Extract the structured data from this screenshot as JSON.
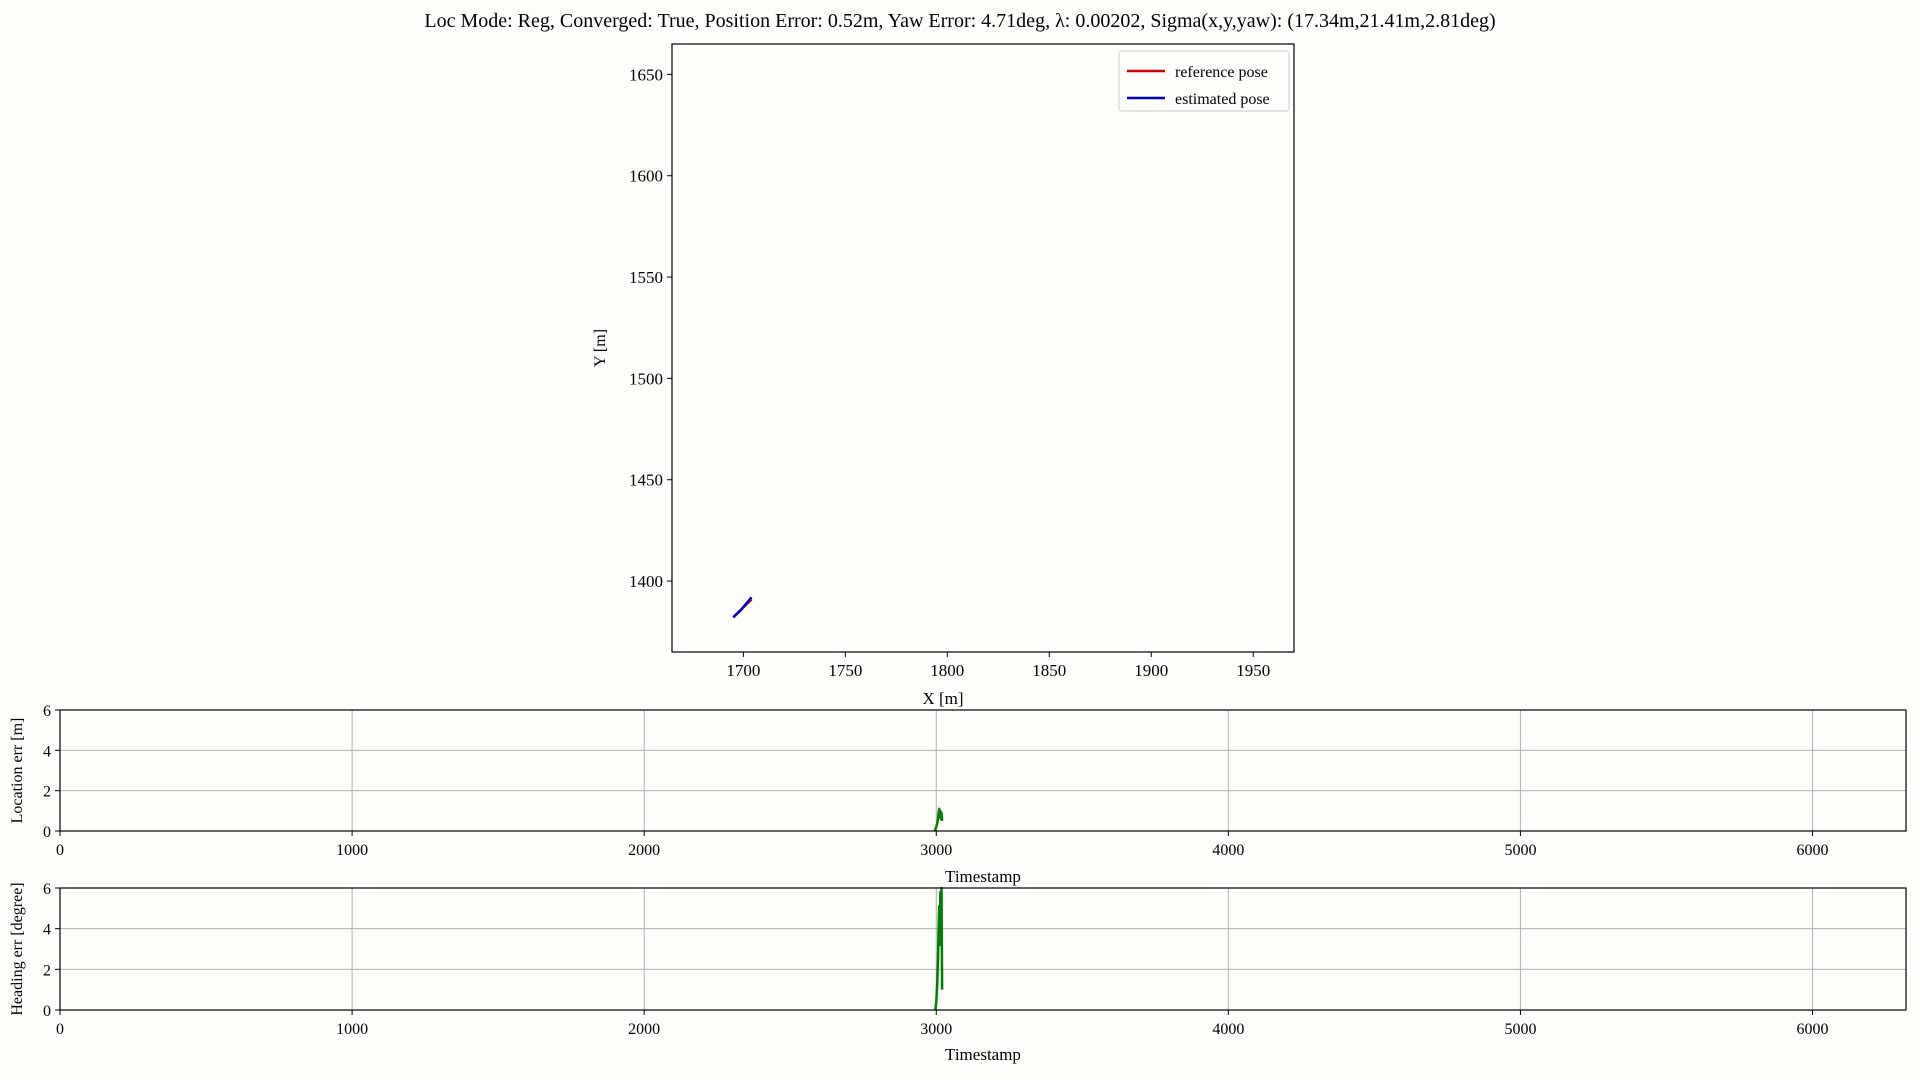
{
  "title": "Loc Mode: Reg, Converged: True, Position Error: 0.52m, Yaw Error: 4.71deg, λ: 0.00202, Sigma(x,y,yaw): (17.34m,21.41m,2.81deg)",
  "colors": {
    "reference": "#cc0000",
    "estimated": "#0000cc",
    "error_line": "#008000",
    "grid": "#b0b0b0",
    "background": "#fdfdf9"
  },
  "chart_data": [
    {
      "type": "line",
      "xlabel": "X [m]",
      "ylabel": "Y [m]",
      "xlim": [
        1665,
        1970
      ],
      "ylim": [
        1365,
        1665
      ],
      "xticks": [
        1700,
        1750,
        1800,
        1850,
        1900,
        1950
      ],
      "yticks": [
        1400,
        1450,
        1500,
        1550,
        1600,
        1650
      ],
      "grid": false,
      "legend": "top-right",
      "series": [
        {
          "name": "reference pose",
          "color": "#cc0000",
          "points": [
            [
              1696,
              1383
            ],
            [
              1700,
              1387
            ],
            [
              1704,
              1391
            ]
          ]
        },
        {
          "name": "estimated pose",
          "color": "#0000cc",
          "points": [
            [
              1695,
              1382
            ],
            [
              1699,
              1386
            ],
            [
              1704,
              1392
            ]
          ]
        }
      ]
    },
    {
      "type": "line",
      "xlabel": "Timestamp",
      "ylabel": "Location err [m]",
      "xlim": [
        0,
        6320
      ],
      "ylim": [
        0,
        6
      ],
      "xticks": [
        0,
        1000,
        2000,
        3000,
        4000,
        5000,
        6000
      ],
      "yticks": [
        0,
        2,
        4,
        6
      ],
      "grid": true,
      "series": [
        {
          "color": "#008000",
          "x": [
            2995,
            3000,
            3005,
            3008,
            3010,
            3012,
            3014,
            3016,
            3018,
            3020
          ],
          "y": [
            0.0,
            0.2,
            0.5,
            0.9,
            1.1,
            0.7,
            1.0,
            0.6,
            0.9,
            0.5
          ]
        }
      ]
    },
    {
      "type": "line",
      "xlabel": "Timestamp",
      "ylabel": "Heading err [degree]",
      "xlim": [
        0,
        6320
      ],
      "ylim": [
        0,
        6
      ],
      "xticks": [
        0,
        1000,
        2000,
        3000,
        4000,
        5000,
        6000
      ],
      "yticks": [
        0,
        2,
        4,
        6
      ],
      "grid": true,
      "series": [
        {
          "color": "#008000",
          "x": [
            2997,
            3000,
            3003,
            3006,
            3008,
            3010,
            3012,
            3014,
            3016,
            3018,
            3020
          ],
          "y": [
            0.0,
            0.4,
            1.2,
            2.5,
            4.0,
            5.1,
            3.2,
            5.8,
            4.5,
            6.0,
            1.0
          ]
        }
      ]
    }
  ]
}
